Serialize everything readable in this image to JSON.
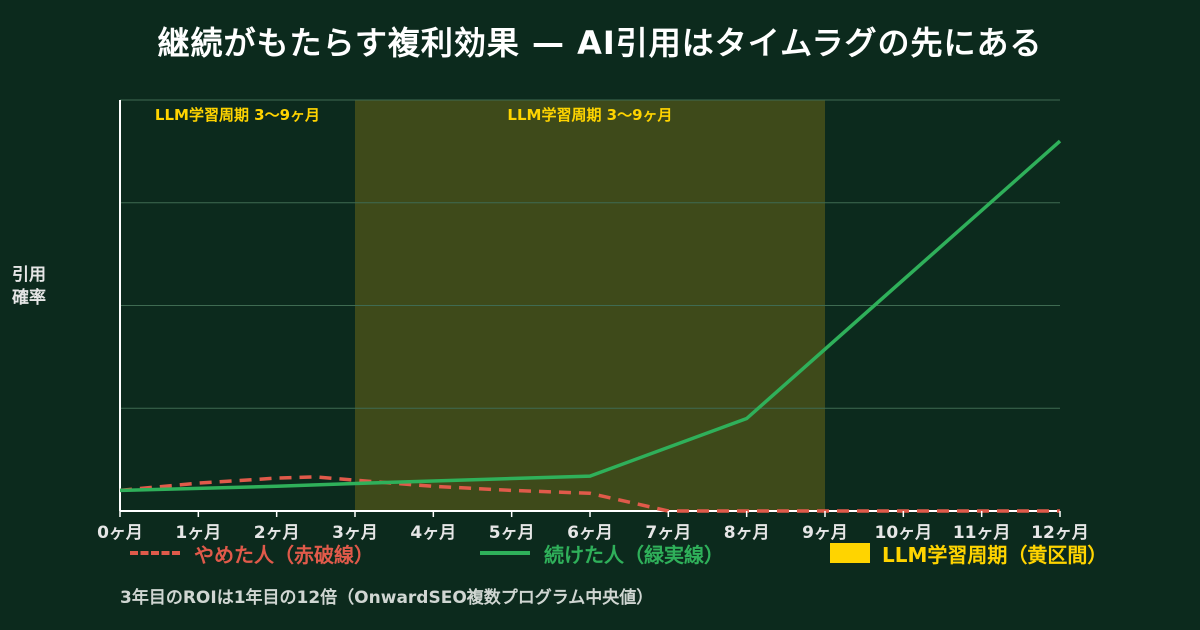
{
  "title": "継続がもたらす複利効果 — AI引用はタイムラグの先にある",
  "footnote": "3年目のROIは1年目の12倍（OnwardSEO複数プログラム中央値）",
  "chart_data": {
    "type": "line",
    "title": "継続がもたらす複利効果 — AI引用はタイムラグの先にある",
    "ylabel_lines": [
      "引用",
      "確率"
    ],
    "xlabel": "",
    "categories": [
      "0ヶ月",
      "1ヶ月",
      "2ヶ月",
      "3ヶ月",
      "4ヶ月",
      "5ヶ月",
      "6ヶ月",
      "7ヶ月",
      "8ヶ月",
      "9ヶ月",
      "10ヶ月",
      "11ヶ月",
      "12ヶ月"
    ],
    "ylim": [
      0,
      100
    ],
    "grid": true,
    "series": [
      {
        "name": "やめた人（赤破線）",
        "style": "dashed",
        "color": "#e05a4a",
        "x": [
          0,
          1,
          2,
          2.5,
          3,
          4,
          5,
          6,
          7,
          8,
          9,
          10,
          11,
          12
        ],
        "values": [
          5,
          6.8,
          8,
          8.3,
          7.5,
          6,
          5,
          4.3,
          0,
          0,
          0,
          0,
          0,
          0
        ]
      },
      {
        "name": "続けた人（緑実線）",
        "style": "solid",
        "color": "#2fb05a",
        "x": [
          0,
          1,
          2,
          3,
          4,
          5,
          6,
          8,
          12
        ],
        "values": [
          5,
          5.5,
          6,
          6.7,
          7.3,
          7.9,
          8.5,
          22.5,
          90
        ]
      }
    ],
    "shaded_regions": [
      {
        "name": "LLM学習周期（黄区間）",
        "x_start": 3,
        "x_end": 9,
        "color": "#3e4a1a",
        "label": "LLM学習周期 3〜9ヶ月"
      }
    ],
    "annotations": [
      {
        "text": "LLM学習周期 3〜9ヶ月",
        "x": 1.5
      },
      {
        "text": "LLM学習周期 3〜9ヶ月",
        "x": 6
      }
    ],
    "legend": {
      "placement": "bottom",
      "items": [
        {
          "label": "やめた人（赤破線）",
          "kind": "dashed-line",
          "color": "#e05a4a",
          "text_color": "#e05a4a"
        },
        {
          "label": "続けた人（緑実線）",
          "kind": "solid-line",
          "color": "#2fb05a",
          "text_color": "#2fb05a"
        },
        {
          "label": "LLM学習周期（黄区間）",
          "kind": "box",
          "color": "#ffd400",
          "text_color": "#ffd400"
        }
      ]
    },
    "colors": {
      "background": "#0c2a1d",
      "axis": "#ffffff",
      "grid": "#3f6b52",
      "annotation": "#ffd400",
      "tick": "#e6e6e6"
    }
  }
}
